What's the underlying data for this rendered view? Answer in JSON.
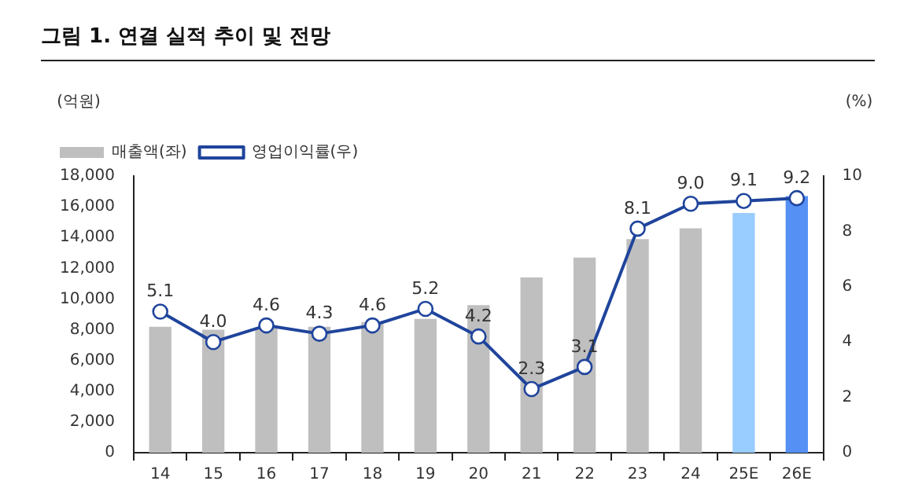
{
  "chart_data": {
    "type": "bar",
    "title": "그림 1. 연결 실적 추이 및 전망",
    "ylabel": "(억원)",
    "y2label": "(%)",
    "categories": [
      "14",
      "15",
      "16",
      "17",
      "18",
      "19",
      "20",
      "21",
      "22",
      "23",
      "24",
      "25E",
      "26E"
    ],
    "series": [
      {
        "name": "매출액(좌)",
        "colors": [
          "#bfbfbf",
          "#bfbfbf",
          "#bfbfbf",
          "#bfbfbf",
          "#bfbfbf",
          "#bfbfbf",
          "#bfbfbf",
          "#bfbfbf",
          "#bfbfbf",
          "#bfbfbf",
          "#bfbfbf",
          "#99ccff",
          "#5591f5"
        ],
        "values": [
          8200,
          8000,
          8100,
          8200,
          8500,
          8700,
          9600,
          11400,
          12700,
          13900,
          14600,
          15600,
          16700
        ]
      },
      {
        "name": "영업이익률(우)",
        "type": "line",
        "axis": "y2",
        "color": "#1f449c",
        "marker": "circle",
        "values": [
          5.1,
          4.0,
          4.6,
          4.3,
          4.6,
          5.2,
          4.2,
          2.3,
          3.1,
          8.1,
          9.0,
          9.1,
          9.2
        ],
        "value_labels": [
          "5.1",
          "4.0",
          "4.6",
          "4.3",
          "4.6",
          "5.2",
          "4.2",
          "2.3",
          "3.1",
          "8.1",
          "9.0",
          "9.1",
          "9.2"
        ]
      }
    ],
    "ylim": [
      0,
      18000
    ],
    "yticks": [
      0,
      {
        "value": 2000,
        "label": "2,000"
      },
      {
        "value": 4000,
        "label": "4,000"
      },
      {
        "value": 6000,
        "label": "6,000"
      },
      {
        "value": 8000,
        "label": "8,000"
      },
      {
        "value": 10000,
        "label": "10,000"
      },
      {
        "value": 12000,
        "label": "12,000"
      },
      {
        "value": 14000,
        "label": "14,000"
      },
      {
        "value": 16000,
        "label": "16,000"
      },
      {
        "value": 18000,
        "label": "18,000"
      }
    ],
    "y2lim": [
      0,
      10
    ],
    "y2ticks": [
      0,
      2,
      4,
      6,
      8,
      10
    ],
    "grid": false,
    "legend": "top left"
  }
}
